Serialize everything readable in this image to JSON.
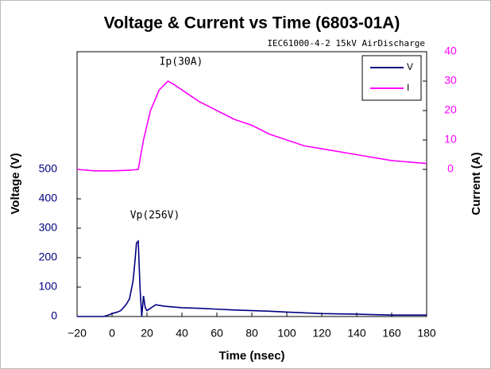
{
  "chart_data": {
    "type": "line",
    "title": "Voltage & Current vs Time (6803-01A)",
    "subtitle": "IEC61000-4-2 15kV AirDischarge",
    "x_label": "Time (nsec)",
    "y_label": "Voltage (V)",
    "y2_label": "Current (A)",
    "xlim": [
      -20,
      180
    ],
    "xticks": [
      {
        "value": -20,
        "label": "−20"
      },
      0,
      20,
      40,
      60,
      80,
      100,
      120,
      140,
      160,
      180
    ],
    "ylim": [
      0,
      900
    ],
    "yticks": [
      0,
      100,
      200,
      300,
      400,
      500
    ],
    "y2lim": [
      -50,
      40
    ],
    "y2ticks": [
      0,
      10,
      20,
      30,
      40
    ],
    "legend": "upper right",
    "grid": false,
    "series": [
      {
        "name": "V",
        "color": "#000080",
        "x": [
          -20,
          -5,
          -2,
          0,
          3,
          5,
          8,
          10,
          12,
          13,
          14,
          15,
          16,
          17,
          18,
          19,
          20,
          25,
          30,
          40,
          50,
          60,
          70,
          80,
          90,
          100,
          120,
          140,
          160,
          180
        ],
        "values": [
          0,
          0,
          5,
          10,
          15,
          20,
          40,
          60,
          120,
          180,
          250,
          256,
          100,
          0,
          70,
          30,
          20,
          40,
          35,
          30,
          28,
          25,
          22,
          20,
          18,
          15,
          10,
          8,
          5,
          5
        ]
      },
      {
        "name": "I",
        "color": "#ff00ff",
        "axis": "y2",
        "x": [
          -20,
          -10,
          0,
          10,
          15,
          18,
          22,
          27,
          32,
          35,
          40,
          50,
          60,
          70,
          80,
          90,
          100,
          110,
          120,
          140,
          160,
          180
        ],
        "values": [
          0,
          -0.5,
          -0.5,
          -0.3,
          0,
          10,
          20,
          27,
          30,
          29,
          27,
          23,
          20,
          17,
          15,
          12,
          10,
          8,
          7,
          5,
          3,
          2
        ]
      }
    ],
    "annotations": [
      "Ip(30A)",
      "Vp(256V)"
    ]
  }
}
